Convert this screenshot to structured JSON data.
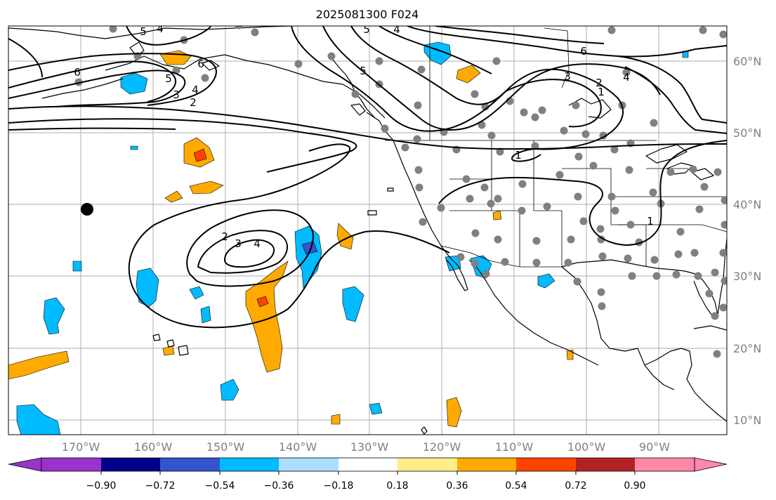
{
  "title": "2025081300 F024",
  "map": {
    "lon_labels": [
      "170°W",
      "160°W",
      "150°W",
      "140°W",
      "130°W",
      "120°W",
      "110°W",
      "100°W",
      "90°W"
    ],
    "lat_labels": [
      "60°N",
      "50°N",
      "40°N",
      "30°N",
      "20°N",
      "10°N"
    ],
    "contour_labels": [
      "4",
      "5",
      "3",
      "2",
      "6",
      "5",
      "4",
      "1",
      "1",
      "1",
      "2",
      "3",
      "4",
      "6",
      "4",
      "3",
      "2",
      "5",
      "6",
      "5",
      "4"
    ],
    "colors": {
      "coast": "#000000",
      "contour": "#000000",
      "grid": "#9a9a9a",
      "station": "#808080"
    }
  },
  "colorbar": {
    "ticks": [
      "−0.90",
      "−0.72",
      "−0.54",
      "−0.36",
      "−0.18",
      "0.18",
      "0.36",
      "0.54",
      "0.72",
      "0.90"
    ],
    "colors": [
      "#9933cc",
      "#000088",
      "#3355cc",
      "#00bbff",
      "#aaddff",
      "#ffffff",
      "#ffee88",
      "#ffaa00",
      "#ff4400",
      "#b22222",
      "#ff88aa"
    ]
  }
}
